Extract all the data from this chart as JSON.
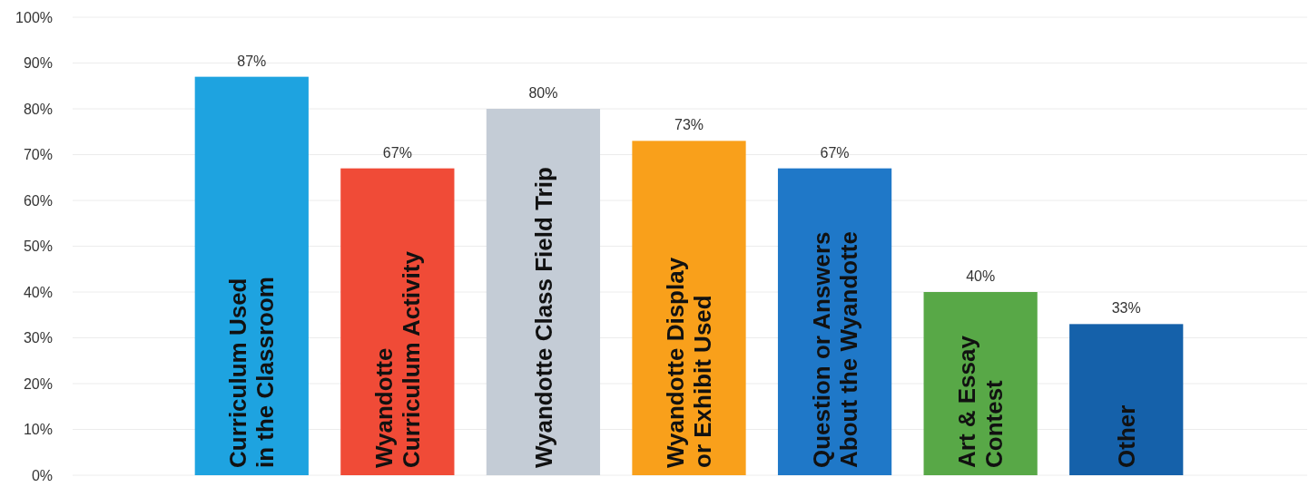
{
  "chart_data": {
    "type": "bar",
    "categories": [
      "Curriculum Used in the Classroom",
      "Wyandotte Curriculum Activity",
      "Wyandotte Class Field Trip",
      "Wyandotte Display or Exhibit Used",
      "Question or Answers About the Wyandotte",
      "Art & Essay Contest",
      "Other"
    ],
    "values": [
      87,
      67,
      80,
      73,
      67,
      40,
      33
    ],
    "value_labels": [
      "87%",
      "67%",
      "80%",
      "73%",
      "67%",
      "40%",
      "33%"
    ],
    "colors": [
      "#1ea3e0",
      "#f04b37",
      "#c4ccd6",
      "#f9a01b",
      "#1f78c8",
      "#58a847",
      "#1561aa"
    ],
    "ylim": [
      0,
      100
    ],
    "yticks": [
      {
        "value": 0,
        "label": "0%"
      },
      {
        "value": 10,
        "label": "10%"
      },
      {
        "value": 20,
        "label": "20%"
      },
      {
        "value": 30,
        "label": "30%"
      },
      {
        "value": 40,
        "label": "40%"
      },
      {
        "value": 50,
        "label": "50%"
      },
      {
        "value": 60,
        "label": "60%"
      },
      {
        "value": 70,
        "label": "70%"
      },
      {
        "value": 80,
        "label": "80%"
      },
      {
        "value": 90,
        "label": "90%"
      },
      {
        "value": 100,
        "label": "100%"
      }
    ],
    "grid": "y"
  }
}
